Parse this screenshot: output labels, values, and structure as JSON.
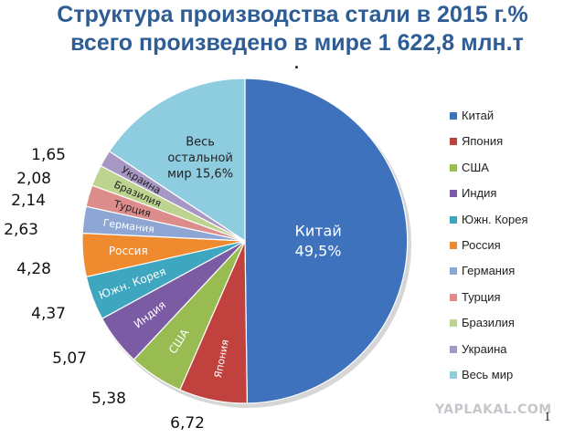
{
  "title": {
    "line1": "Структура производства стали в 2015 г.%",
    "line2": "всего произведено в мире  1 622,8 млн.т",
    "line3": "."
  },
  "chart_data": {
    "type": "pie",
    "categories": [
      "Китай",
      "Япония",
      "США",
      "Индия",
      "Южн. Корея",
      "Россия",
      "Германия",
      "Турция",
      "Бразилия",
      "Украина",
      "Весь мир"
    ],
    "values": [
      49.5,
      6.72,
      5.38,
      5.07,
      4.37,
      4.28,
      2.63,
      2.14,
      2.08,
      1.65,
      15.6
    ],
    "outer_labels": [
      "",
      "6,72",
      "5,38",
      "5,07",
      "4,37",
      "4,28",
      "2,63",
      "2,14",
      "2,08",
      "1,65",
      ""
    ],
    "slice_labels": [
      [
        "Китай",
        "49,5%"
      ],
      [
        "Япония"
      ],
      [
        "США"
      ],
      [
        "Индия"
      ],
      [
        "Южн. Корея"
      ],
      [
        "Россия"
      ],
      [
        "Германия"
      ],
      [
        "Турция"
      ],
      [
        "Бразилия"
      ],
      [
        "Украина"
      ],
      [
        "Весь",
        "остальной",
        "мир 15,6%"
      ]
    ],
    "legend": [
      "Китай",
      "Япония",
      "США",
      "Индия",
      "Южн. Корея",
      "Россия",
      "Германия",
      "Турция",
      "Бразилия",
      "Украина",
      "Весь мир"
    ],
    "legend_position": "right",
    "colors": [
      "#3e72bd",
      "#c0413e",
      "#98bb52",
      "#7b5ba3",
      "#3ea6bf",
      "#f08a2e",
      "#8ea6d4",
      "#dc8d8b",
      "#bcd48f",
      "#a797c5",
      "#8ecde0"
    ]
  },
  "watermark": "YAPLAKAL.COM",
  "page_number": "1"
}
